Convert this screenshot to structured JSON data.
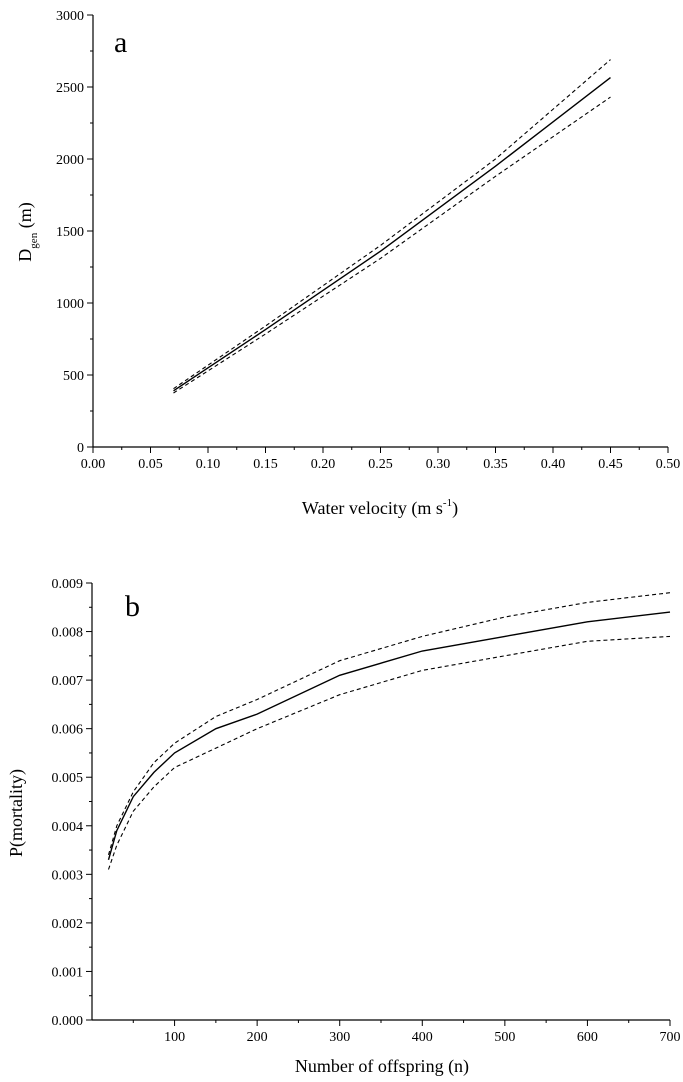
{
  "chart_data": [
    {
      "type": "line",
      "panel_label": "a",
      "xlabel": "Water velocity (m s",
      "xlabel_sup": "-1",
      "xlabel_tail": ")",
      "ylabel_main": "D",
      "ylabel_sub": "gen",
      "ylabel_tail": " (m)",
      "xlim": [
        0.0,
        0.5
      ],
      "ylim": [
        0,
        3000
      ],
      "x_ticks": [
        "0.00",
        "0.05",
        "0.10",
        "0.15",
        "0.20",
        "0.25",
        "0.30",
        "0.35",
        "0.40",
        "0.45",
        "0.50"
      ],
      "y_ticks": [
        "0",
        "500",
        "1000",
        "1500",
        "2000",
        "2500",
        "3000"
      ],
      "grid": false,
      "legend": "none",
      "series": [
        {
          "style": "dashed",
          "x": [
            0.07,
            0.15,
            0.25,
            0.35,
            0.45
          ],
          "y": [
            405,
            840,
            1400,
            2000,
            2690
          ]
        },
        {
          "style": "solid",
          "x": [
            0.07,
            0.15,
            0.25,
            0.35,
            0.45
          ],
          "y": [
            390,
            815,
            1360,
            1950,
            2565
          ]
        },
        {
          "style": "dashed",
          "x": [
            0.07,
            0.15,
            0.25,
            0.35,
            0.45
          ],
          "y": [
            375,
            785,
            1310,
            1880,
            2430
          ]
        }
      ]
    },
    {
      "type": "line",
      "panel_label": "b",
      "xlabel": "Number of offspring (n)",
      "ylabel": "P(mortality)",
      "xlim": [
        0,
        700
      ],
      "ylim": [
        0.0,
        0.009
      ],
      "x_ticks": [
        "100",
        "200",
        "300",
        "400",
        "500",
        "600",
        "700"
      ],
      "y_ticks": [
        "0.000",
        "0.001",
        "0.002",
        "0.003",
        "0.004",
        "0.005",
        "0.006",
        "0.007",
        "0.008",
        "0.009"
      ],
      "grid": false,
      "legend": "none",
      "series": [
        {
          "style": "dashed",
          "x": [
            20,
            30,
            50,
            75,
            100,
            150,
            200,
            300,
            400,
            500,
            600,
            700
          ],
          "y": [
            0.0034,
            0.004,
            0.0047,
            0.0053,
            0.0057,
            0.00625,
            0.0066,
            0.0074,
            0.0079,
            0.0083,
            0.0086,
            0.0088
          ]
        },
        {
          "style": "solid",
          "x": [
            20,
            30,
            50,
            75,
            100,
            150,
            200,
            300,
            400,
            500,
            600,
            700
          ],
          "y": [
            0.0033,
            0.0039,
            0.0046,
            0.0051,
            0.0055,
            0.006,
            0.0063,
            0.0071,
            0.0076,
            0.0079,
            0.0082,
            0.0084
          ]
        },
        {
          "style": "dashed",
          "x": [
            20,
            30,
            50,
            75,
            100,
            150,
            200,
            300,
            400,
            500,
            600,
            700
          ],
          "y": [
            0.0031,
            0.0036,
            0.0043,
            0.0048,
            0.0052,
            0.0056,
            0.006,
            0.0067,
            0.0072,
            0.0075,
            0.0078,
            0.0079
          ]
        }
      ]
    }
  ]
}
